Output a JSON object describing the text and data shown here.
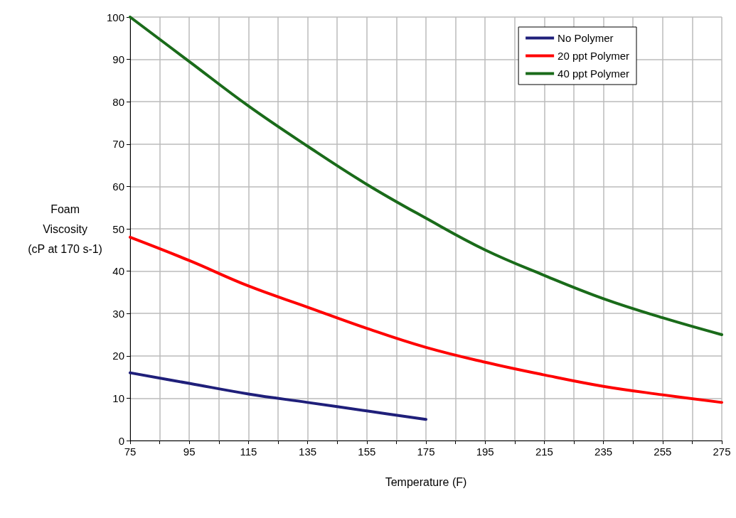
{
  "chart_data": {
    "type": "line",
    "xlabel": "Temperature (F)",
    "ylabel": "Foam\nViscosity\n(cP at 170 s-1)",
    "x": [
      75,
      95,
      115,
      135,
      155,
      175,
      195,
      215,
      235,
      255,
      275
    ],
    "series": [
      {
        "name": "No Polymer",
        "color": "#1f1f7a",
        "x": [
          75,
          95,
          115,
          135,
          155,
          175
        ],
        "values": [
          16,
          13.5,
          11,
          9,
          7,
          5
        ]
      },
      {
        "name": "20 ppt Polymer",
        "color": "#ff0000",
        "values": [
          48,
          42.5,
          36.5,
          31.5,
          26.5,
          22,
          18.5,
          15.5,
          12.8,
          10.8,
          9
        ]
      },
      {
        "name": "40 ppt Polymer",
        "color": "#1a6b1a",
        "values": [
          100,
          89.5,
          79,
          69.5,
          60.5,
          52.5,
          45,
          39,
          33.5,
          29,
          25
        ]
      }
    ],
    "xlim": [
      75,
      275
    ],
    "xticks": [
      75,
      {
        "value": 85,
        "label": null
      },
      95,
      {
        "value": 105,
        "label": null
      },
      115,
      {
        "value": 125,
        "label": null
      },
      135,
      {
        "value": 145,
        "label": null
      },
      155,
      {
        "value": 165,
        "label": null
      },
      175,
      {
        "value": 185,
        "label": null
      },
      195,
      {
        "value": 205,
        "label": null
      },
      215,
      {
        "value": 225,
        "label": null
      },
      235,
      {
        "value": 245,
        "label": null
      },
      255,
      {
        "value": 265,
        "label": null
      },
      275
    ],
    "ylim": [
      0,
      100
    ],
    "yticks": [
      0,
      10,
      20,
      30,
      40,
      50,
      60,
      70,
      80,
      90,
      100
    ],
    "grid": true,
    "legend": "top right",
    "marker": "none",
    "line_style": "solid"
  }
}
